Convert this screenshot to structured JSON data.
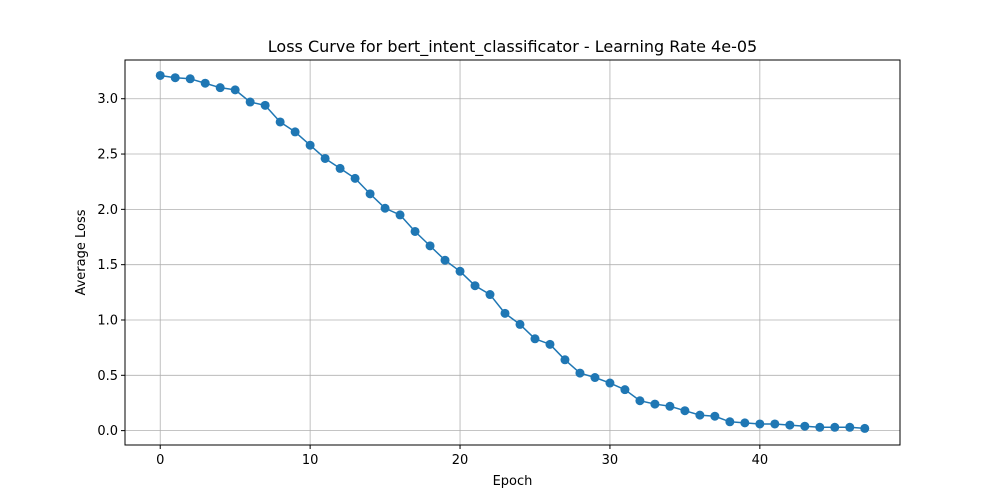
{
  "chart_data": {
    "type": "line",
    "title": "Loss Curve for bert_intent_classificator - Learning Rate 4e-05",
    "xlabel": "Epoch",
    "ylabel": "Average Loss",
    "xlim": [
      -2.35,
      49.35
    ],
    "ylim": [
      -0.13,
      3.35
    ],
    "xticks": [
      0,
      10,
      20,
      30,
      40
    ],
    "yticks": [
      0.0,
      0.5,
      1.0,
      1.5,
      2.0,
      2.5,
      3.0
    ],
    "xtick_labels": [
      "0",
      "10",
      "20",
      "30",
      "40"
    ],
    "ytick_labels": [
      "0.0",
      "0.5",
      "1.0",
      "1.5",
      "2.0",
      "2.5",
      "3.0"
    ],
    "grid": true,
    "legend": "none",
    "series": [
      {
        "color": "#1f77b4",
        "marker": "circle",
        "x": [
          0,
          1,
          2,
          3,
          4,
          5,
          6,
          7,
          8,
          9,
          10,
          11,
          12,
          13,
          14,
          15,
          16,
          17,
          18,
          19,
          20,
          21,
          22,
          23,
          24,
          25,
          26,
          27,
          28,
          29,
          30,
          31,
          32,
          33,
          34,
          35,
          36,
          37,
          38,
          39,
          40,
          41,
          42,
          43,
          44,
          45,
          46,
          47
        ],
        "y": [
          3.21,
          3.19,
          3.18,
          3.14,
          3.1,
          3.08,
          2.97,
          2.94,
          2.79,
          2.7,
          2.58,
          2.46,
          2.37,
          2.28,
          2.14,
          2.01,
          1.95,
          1.8,
          1.67,
          1.54,
          1.44,
          1.31,
          1.23,
          1.06,
          0.96,
          0.83,
          0.78,
          0.64,
          0.52,
          0.48,
          0.43,
          0.37,
          0.27,
          0.24,
          0.22,
          0.18,
          0.14,
          0.13,
          0.08,
          0.07,
          0.06,
          0.06,
          0.05,
          0.04,
          0.03,
          0.03,
          0.03,
          0.02
        ]
      }
    ]
  },
  "colors": {
    "line": "#1f77b4",
    "grid": "#b0b0b0",
    "axes": "#000000",
    "background": "#ffffff"
  }
}
